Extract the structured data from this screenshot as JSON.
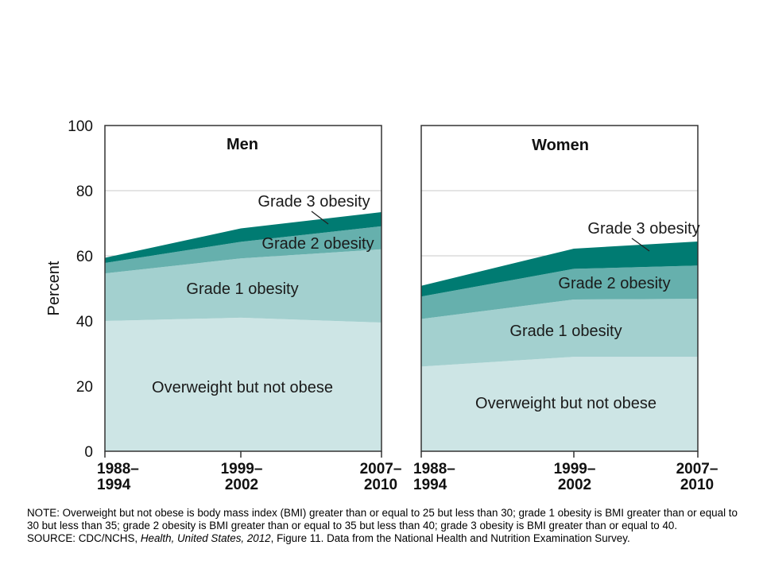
{
  "chart_data": {
    "type": "area",
    "stacked": true,
    "ylabel": "Percent",
    "ylim": [
      0,
      100
    ],
    "yticks": [
      0,
      20,
      40,
      60,
      80,
      100
    ],
    "x": [
      "1988–1994",
      "1999–2002",
      "2007–2010"
    ],
    "x_lines": [
      [
        "1988–",
        "1994"
      ],
      [
        "1999–",
        "2002"
      ],
      [
        "2007–",
        "2010"
      ]
    ],
    "colors": {
      "Overweight but not obese": "#cde5e5",
      "Grade 1 obesity": "#a3d0cf",
      "Grade 2 obesity": "#66b0ad",
      "Grade 3 obesity": "#007b72"
    },
    "gridlines": [
      60,
      80
    ],
    "panels": [
      {
        "title": "Men",
        "series": [
          {
            "name": "Overweight but not obese",
            "values": [
              40,
              41,
              39.5
            ]
          },
          {
            "name": "Grade 1 obesity",
            "values": [
              14.6,
              18.2,
              22.5
            ]
          },
          {
            "name": "Grade 2 obesity",
            "values": [
              3.2,
              5.1,
              7.1
            ]
          },
          {
            "name": "Grade 3 obesity",
            "values": [
              1.6,
              4.1,
              4.3
            ]
          }
        ]
      },
      {
        "title": "Women",
        "series": [
          {
            "name": "Overweight but not obese",
            "values": [
              26,
              29,
              29
            ]
          },
          {
            "name": "Grade 1 obesity",
            "values": [
              14.6,
              17.6,
              17.8
            ]
          },
          {
            "name": "Grade 2 obesity",
            "values": [
              6.9,
              9.4,
              10.2
            ]
          },
          {
            "name": "Grade 3 obesity",
            "values": [
              3.3,
              6.2,
              7.4
            ]
          }
        ]
      }
    ]
  },
  "notes": {
    "note": "NOTE: Overweight but not obese is body mass index (BMI) greater than or equal to 25 but less than 30; grade 1 obesity is BMI greater than or equal to 30 but less than 35; grade 2 obesity is BMI greater than or equal to 35 but less than 40; grade 3 obesity is BMI greater than or equal to 40.",
    "source_prefix": "SOURCE: CDC/NCHS, ",
    "source_title": "Health, United States, 2012",
    "source_suffix": ", Figure 11. Data from the National Health and Nutrition Examination Survey."
  }
}
